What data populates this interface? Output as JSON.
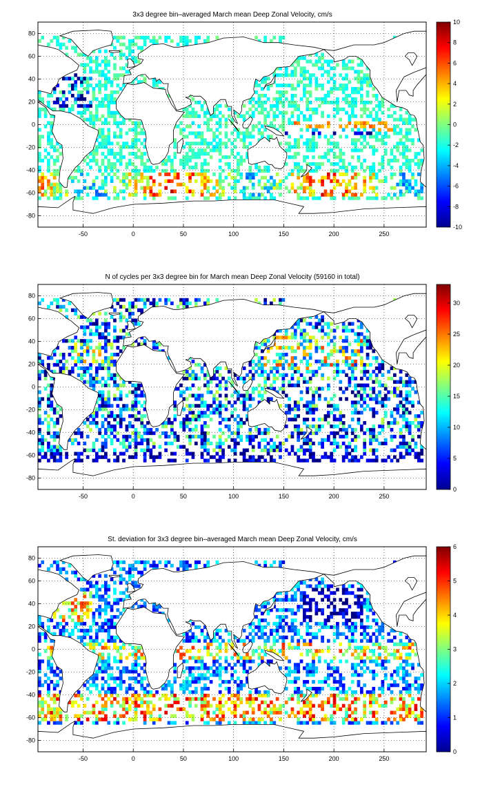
{
  "chart_data": [
    {
      "type": "heatmap",
      "title": "3x3 degree bin–averaged March mean Deep Zonal Velocity, cm/s",
      "xlim": [
        -95,
        292
      ],
      "ylim": [
        -90,
        90
      ],
      "xticks": [
        -50,
        0,
        50,
        100,
        150,
        200,
        250
      ],
      "yticks": [
        80,
        60,
        40,
        20,
        0,
        -20,
        -40,
        -60,
        -80
      ],
      "grid": true,
      "bin_size_deg": 3,
      "colorbar": {
        "colormap": "jet",
        "min": -10,
        "max": 10,
        "ticks": [
          10,
          8,
          6,
          4,
          2,
          0,
          -2,
          -4,
          -6,
          -8,
          -10
        ]
      },
      "pattern": "velocity"
    },
    {
      "type": "heatmap",
      "title": "N of cycles per 3x3 degree bin for March mean Deep Zonal Velocity (59160 in total)",
      "xlim": [
        -95,
        292
      ],
      "ylim": [
        -90,
        90
      ],
      "xticks": [
        -50,
        0,
        50,
        100,
        150,
        200,
        250
      ],
      "yticks": [
        80,
        60,
        40,
        20,
        0,
        -20,
        -40,
        -60,
        -80
      ],
      "grid": true,
      "bin_size_deg": 3,
      "total_cycles": 59160,
      "colorbar": {
        "colormap": "jet",
        "min": 0,
        "max": 33,
        "ticks": [
          30,
          25,
          20,
          15,
          10,
          5,
          0
        ]
      },
      "pattern": "count"
    },
    {
      "type": "heatmap",
      "title": "St. deviation for 3x3 degree bin–averaged March mean Deep Zonal Velocity, cm/s",
      "xlim": [
        -95,
        292
      ],
      "ylim": [
        -90,
        90
      ],
      "xticks": [
        -50,
        0,
        50,
        100,
        150,
        200,
        250
      ],
      "yticks": [
        80,
        60,
        40,
        20,
        0,
        -20,
        -40,
        -60,
        -80
      ],
      "grid": true,
      "bin_size_deg": 3,
      "colorbar": {
        "colormap": "jet",
        "min": 0,
        "max": 6,
        "ticks": [
          6,
          5,
          4,
          3,
          2,
          1,
          0
        ]
      },
      "pattern": "std"
    }
  ]
}
